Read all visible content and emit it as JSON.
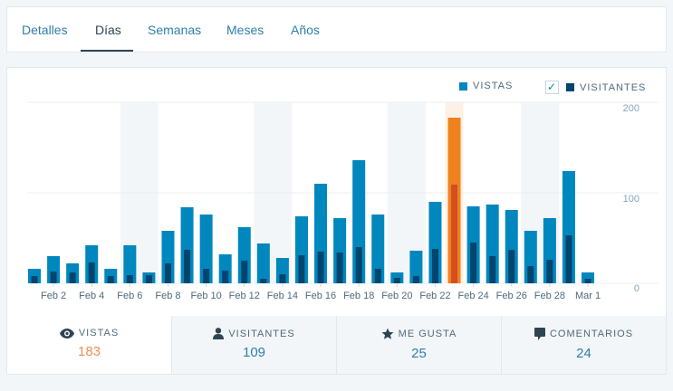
{
  "tabs": [
    {
      "label": "Detalles"
    },
    {
      "label": "Días",
      "active": true
    },
    {
      "label": "Semanas"
    },
    {
      "label": "Meses"
    },
    {
      "label": "Años"
    }
  ],
  "legend": {
    "views": "VISTAS",
    "visitors": "VISITANTES",
    "visitors_checked": true
  },
  "colors": {
    "views": "#0087be",
    "visitors": "#00456e",
    "highlight": "#f0821e",
    "highlight_visitors": "#d54e21",
    "weekend": "#f3f6f8",
    "highlight_band": "#fdf1e6"
  },
  "chart_data": {
    "type": "bar",
    "categories": [
      "Feb 1",
      "Feb 2",
      "Feb 3",
      "Feb 4",
      "Feb 5",
      "Feb 6",
      "Feb 7",
      "Feb 8",
      "Feb 9",
      "Feb 10",
      "Feb 11",
      "Feb 12",
      "Feb 13",
      "Feb 14",
      "Feb 15",
      "Feb 16",
      "Feb 17",
      "Feb 18",
      "Feb 19",
      "Feb 20",
      "Feb 21",
      "Feb 22",
      "Feb 23",
      "Feb 24",
      "Feb 25",
      "Feb 26",
      "Feb 27",
      "Feb 28",
      "Feb 29",
      "Mar 1"
    ],
    "tick_labels": [
      "Feb 2",
      "Feb 4",
      "Feb 6",
      "Feb 8",
      "Feb 10",
      "Feb 12",
      "Feb 14",
      "Feb 16",
      "Feb 18",
      "Feb 20",
      "Feb 22",
      "Feb 24",
      "Feb 26",
      "Feb 28",
      "Mar 1"
    ],
    "series": [
      {
        "name": "VISTAS",
        "values": [
          16,
          30,
          22,
          42,
          16,
          42,
          12,
          58,
          84,
          76,
          32,
          62,
          44,
          28,
          74,
          110,
          72,
          136,
          76,
          12,
          36,
          90,
          183,
          85,
          87,
          81,
          58,
          72,
          124,
          12
        ]
      },
      {
        "name": "VISITANTES",
        "values": [
          8,
          13,
          12,
          23,
          8,
          9,
          9,
          22,
          37,
          16,
          14,
          25,
          5,
          10,
          31,
          35,
          34,
          40,
          16,
          6,
          8,
          38,
          109,
          45,
          30,
          37,
          19,
          26,
          53,
          5
        ]
      }
    ],
    "weekends": [
      "Feb 6",
      "Feb 7",
      "Feb 13",
      "Feb 14",
      "Feb 20",
      "Feb 21",
      "Feb 27",
      "Feb 28"
    ],
    "highlighted": "Feb 23",
    "y_ticks": [
      "0",
      "100",
      "200"
    ],
    "ylim": [
      0,
      200
    ],
    "grid": true
  },
  "stats": [
    {
      "label": "VISTAS",
      "value": "183",
      "icon": "eye-icon"
    },
    {
      "label": "VISITANTES",
      "value": "109",
      "icon": "person-icon"
    },
    {
      "label": "ME GUSTA",
      "value": "25",
      "icon": "star-icon"
    },
    {
      "label": "COMENTARIOS",
      "value": "24",
      "icon": "comment-icon"
    }
  ]
}
